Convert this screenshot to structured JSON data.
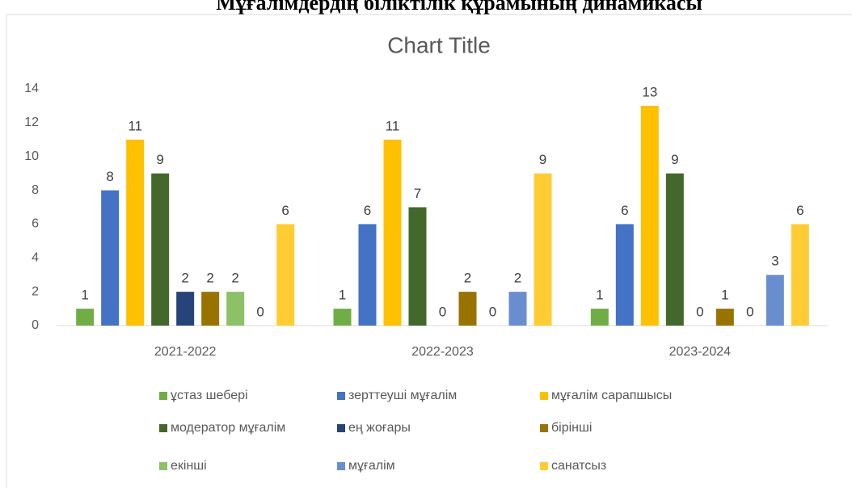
{
  "heading": "Мұғалімдердің біліктілік құрамының динамикасы",
  "chart_data": {
    "type": "bar",
    "title": "Chart Title",
    "categories": [
      "2021-2022",
      "2022-2023",
      "2023-2024"
    ],
    "series": [
      {
        "name": "ұстаз шебері",
        "color": "#70ad47",
        "values": [
          1,
          1,
          1
        ]
      },
      {
        "name": "зерттеуші мұғалім",
        "color": "#4472c4",
        "values": [
          8,
          6,
          6
        ]
      },
      {
        "name": "мұғалім сарапшысы",
        "color": "#ffc000",
        "values": [
          11,
          11,
          13
        ]
      },
      {
        "name": "модератор мұғалім",
        "color": "#43682b",
        "values": [
          9,
          7,
          9
        ]
      },
      {
        "name": "ең жоғары",
        "color": "#264478",
        "values": [
          2,
          0,
          0
        ]
      },
      {
        "name": "бірінші",
        "color": "#997300",
        "values": [
          2,
          2,
          1
        ]
      },
      {
        "name": "екінші",
        "color": "#8cc168",
        "values": [
          2,
          0,
          0
        ]
      },
      {
        "name": "мұғалім",
        "color": "#698ed0",
        "values": [
          0,
          2,
          3
        ]
      },
      {
        "name": "санатсыз",
        "color": "#ffcd33",
        "values": [
          6,
          9,
          6
        ]
      }
    ],
    "ylim": [
      0,
      14
    ],
    "yticks": [
      0,
      2,
      4,
      6,
      8,
      10,
      12,
      14
    ],
    "grid": false,
    "legend": "bottom"
  }
}
